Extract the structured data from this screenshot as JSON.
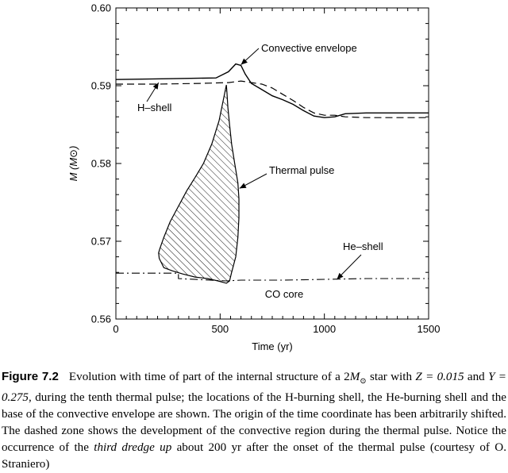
{
  "chart_data": {
    "type": "line",
    "xlabel": "Time (yr)",
    "ylabel": "M (M⊙)",
    "xlim": [
      0,
      1500
    ],
    "ylim": [
      0.56,
      0.6
    ],
    "x_ticks": [
      "0",
      "500",
      "1000",
      "1500"
    ],
    "y_ticks": [
      "0.56",
      "0.57",
      "0.58",
      "0.59",
      "0.60"
    ],
    "grid": false,
    "series": [
      {
        "name": "Convective envelope",
        "style": "solid",
        "x": [
          0,
          250,
          480,
          540,
          575,
          600,
          620,
          650,
          700,
          750,
          800,
          850,
          900,
          950,
          1000,
          1050,
          1100,
          1200,
          1300,
          1400,
          1500
        ],
        "y": [
          0.5908,
          0.5909,
          0.591,
          0.5918,
          0.5928,
          0.5926,
          0.5915,
          0.5903,
          0.5895,
          0.5887,
          0.5882,
          0.5876,
          0.5868,
          0.5861,
          0.5859,
          0.586,
          0.5864,
          0.5865,
          0.5865,
          0.5865,
          0.5865
        ]
      },
      {
        "name": "H-shell",
        "style": "dashed",
        "x": [
          0,
          200,
          400,
          540,
          600,
          650,
          700,
          750,
          800,
          850,
          900,
          950,
          1000,
          1050,
          1100,
          1200,
          1300,
          1400,
          1500
        ],
        "y": [
          0.5902,
          0.5902,
          0.5903,
          0.5904,
          0.5906,
          0.5904,
          0.5902,
          0.5897,
          0.5889,
          0.5881,
          0.5872,
          0.5865,
          0.5862,
          0.5862,
          0.586,
          0.5859,
          0.5859,
          0.5859,
          0.5859
        ]
      },
      {
        "name": "He-shell",
        "style": "dash-dot",
        "x": [
          0,
          300,
          300,
          530,
          600,
          800,
          1000,
          1200,
          1500
        ],
        "y": [
          0.5659,
          0.5659,
          0.5652,
          0.5649,
          0.565,
          0.565,
          0.5651,
          0.5652,
          0.5652
        ]
      },
      {
        "name": "Thermal pulse",
        "style": "hatched-region",
        "x": [
          530,
          520,
          495,
          460,
          420,
          380,
          340,
          300,
          260,
          230,
          210,
          205,
          208,
          230,
          270,
          320,
          380,
          440,
          490,
          530,
          545,
          555,
          575,
          585,
          590,
          590,
          585,
          570,
          555,
          545,
          537,
          533,
          530
        ],
        "y": [
          0.5901,
          0.5888,
          0.5855,
          0.5825,
          0.58,
          0.5782,
          0.5765,
          0.5745,
          0.5725,
          0.5705,
          0.569,
          0.5685,
          0.5678,
          0.5666,
          0.5662,
          0.5658,
          0.5654,
          0.5652,
          0.5649,
          0.5646,
          0.5649,
          0.566,
          0.568,
          0.5705,
          0.573,
          0.5755,
          0.5775,
          0.58,
          0.5825,
          0.585,
          0.5872,
          0.589,
          0.5901
        ]
      }
    ],
    "annotations": [
      {
        "text": "Convective envelope",
        "target_x": 600,
        "target_y": 0.5927
      },
      {
        "text": "H–shell",
        "target_x": 205,
        "target_y": 0.5904
      },
      {
        "text": "Thermal pulse",
        "target_x": 593,
        "target_y": 0.5768
      },
      {
        "text": "He–shell",
        "target_x": 1060,
        "target_y": 0.5651
      },
      {
        "text": "CO core"
      }
    ]
  },
  "caption": {
    "label": "Figure 7.2",
    "text_before": "Evolution with time of part of the internal structure of a 2",
    "mass_symbol": "M",
    "mass_sub": "⊙",
    "text_mid1": " star with ",
    "z_part": "Z = 0.015",
    "text_mid2": " and ",
    "y_part": "Y = 0.275",
    "text_mid3": ", during the tenth thermal pulse; the locations of the H-burning shell, the He-burning shell and the base of the convective envelope are shown. The origin of the time coordinate has been arbitrarily shifted. The dashed zone shows the development of the convective region during the thermal pulse. Notice the occurrence of the ",
    "emph": "third dredge up",
    "text_end": " about 200 yr after the onset of the thermal pulse (courtesy of O. Straniero)"
  }
}
